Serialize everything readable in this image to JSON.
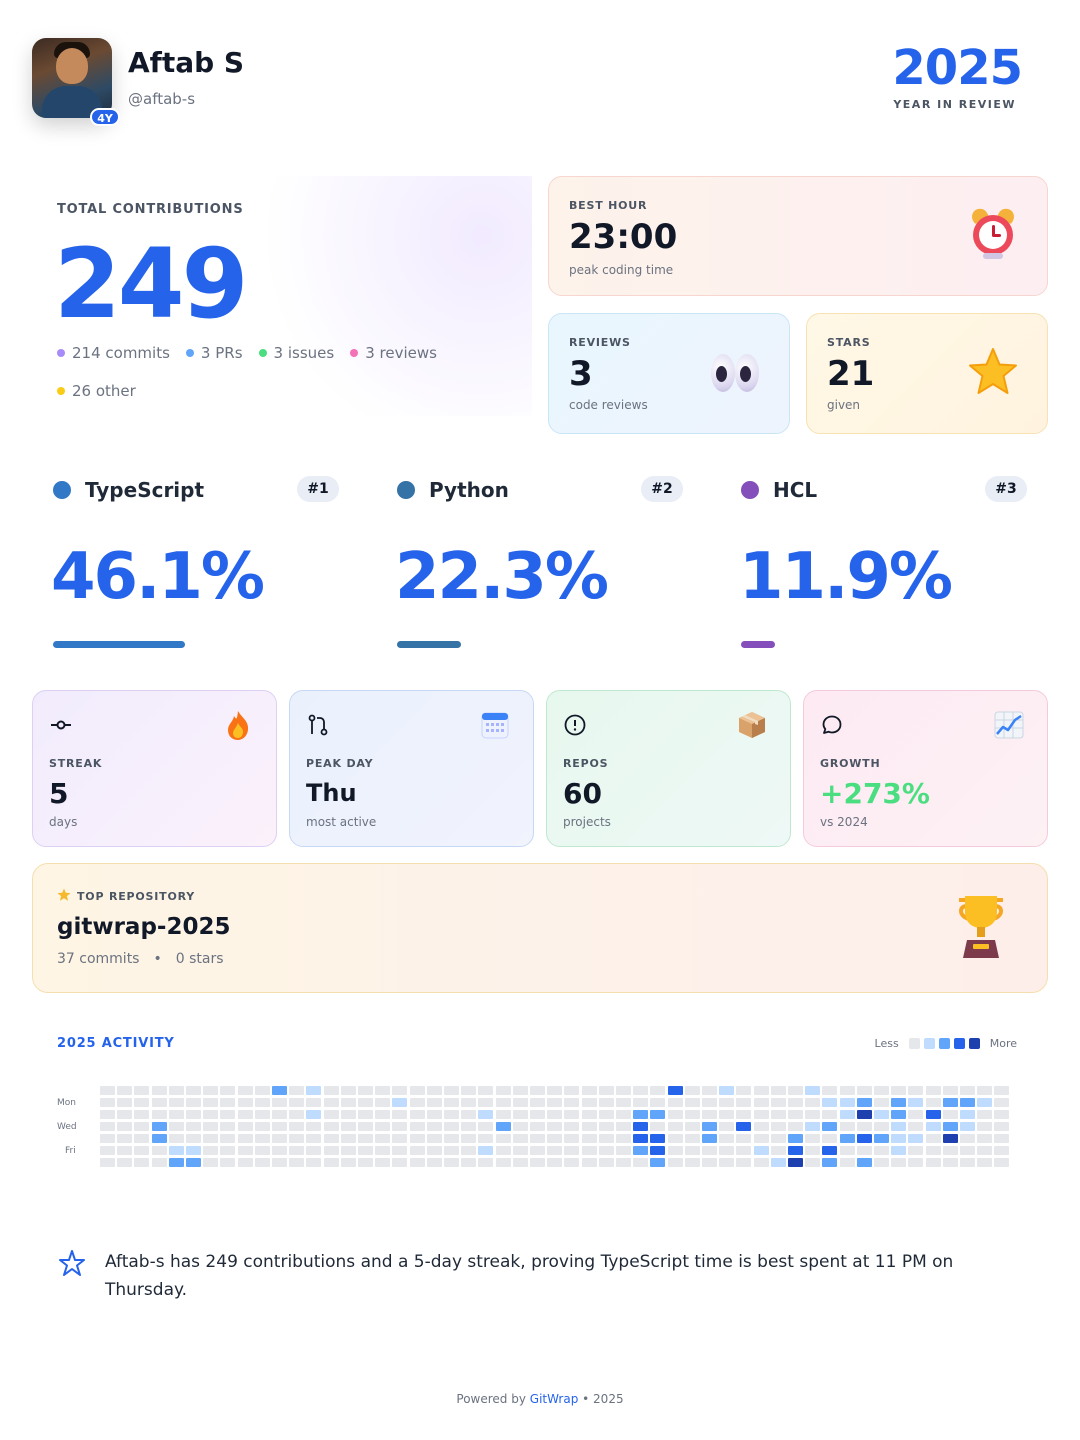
{
  "profile": {
    "name": "Aftab S",
    "handle": "@aftab-s",
    "tenure_badge": "4Y"
  },
  "header": {
    "year": "2025",
    "subtitle": "YEAR IN REVIEW"
  },
  "total": {
    "label": "TOTAL CONTRIBUTIONS",
    "value": "249",
    "breakdown": [
      {
        "text": "214 commits",
        "color": "#a78bfa"
      },
      {
        "text": "3 PRs",
        "color": "#60a5fa"
      },
      {
        "text": "3 issues",
        "color": "#4ade80"
      },
      {
        "text": "3 reviews",
        "color": "#f472b6"
      },
      {
        "text": "26 other",
        "color": "#facc15"
      }
    ]
  },
  "best_hour": {
    "label": "BEST HOUR",
    "value": "23:00",
    "sub": "peak coding time",
    "icon": "alarm-clock-icon"
  },
  "reviews": {
    "label": "REVIEWS",
    "value": "3",
    "sub": "code reviews",
    "icon": "eyes-icon"
  },
  "stars": {
    "label": "STARS",
    "value": "21",
    "sub": "given",
    "icon": "star-icon"
  },
  "languages": [
    {
      "name": "TypeScript",
      "rank": "#1",
      "percent": "46.1%",
      "share": 0.461,
      "color": "#3178c6"
    },
    {
      "name": "Python",
      "rank": "#2",
      "percent": "22.3%",
      "share": 0.223,
      "color": "#3572a5"
    },
    {
      "name": "HCL",
      "rank": "#3",
      "percent": "11.9%",
      "share": 0.119,
      "color": "#844fba"
    }
  ],
  "stat_cards": {
    "streak": {
      "label": "STREAK",
      "value": "5",
      "sub": "days",
      "icon": "commit-icon",
      "emoji": "fire-icon"
    },
    "peak_day": {
      "label": "PEAK DAY",
      "value": "Thu",
      "sub": "most active",
      "icon": "git-pull-request-icon",
      "emoji": "calendar-icon"
    },
    "repos": {
      "label": "REPOS",
      "value": "60",
      "sub": "projects",
      "icon": "alert-circle-icon",
      "emoji": "package-icon"
    },
    "growth": {
      "label": "GROWTH",
      "value": "+273%",
      "sub": "vs 2024",
      "icon": "chat-bubble-icon",
      "emoji": "chart-increasing-icon",
      "value_color": "#4ade80"
    }
  },
  "top_repo": {
    "label": "TOP REPOSITORY",
    "name": "gitwrap-2025",
    "commits": "37 commits",
    "separator": "•",
    "stars": "0 stars"
  },
  "activity": {
    "title": "2025 ACTIVITY",
    "legend_less": "Less",
    "legend_more": "More",
    "day_labels": [
      "Mon",
      "Wed",
      "Fri"
    ],
    "levels": [
      "#e5e7eb",
      "#bfdbfe",
      "#60a5fa",
      "#2563eb",
      "#1e40af"
    ],
    "weeks": 53,
    "active_cells": [
      [
        10,
        0,
        2
      ],
      [
        12,
        0,
        1
      ],
      [
        12,
        2,
        1
      ],
      [
        3,
        3,
        2
      ],
      [
        3,
        4,
        2
      ],
      [
        4,
        5,
        1
      ],
      [
        5,
        5,
        1
      ],
      [
        4,
        6,
        2
      ],
      [
        5,
        6,
        2
      ],
      [
        17,
        1,
        1
      ],
      [
        22,
        2,
        1
      ],
      [
        23,
        3,
        2
      ],
      [
        22,
        5,
        1
      ],
      [
        31,
        2,
        2
      ],
      [
        32,
        2,
        2
      ],
      [
        31,
        3,
        3
      ],
      [
        31,
        4,
        3
      ],
      [
        32,
        4,
        3
      ],
      [
        31,
        5,
        2
      ],
      [
        32,
        5,
        3
      ],
      [
        32,
        6,
        2
      ],
      [
        33,
        0,
        3
      ],
      [
        35,
        3,
        2
      ],
      [
        35,
        4,
        2
      ],
      [
        36,
        0,
        1
      ],
      [
        37,
        3,
        3
      ],
      [
        38,
        5,
        1
      ],
      [
        39,
        6,
        1
      ],
      [
        40,
        4,
        2
      ],
      [
        40,
        5,
        3
      ],
      [
        40,
        6,
        4
      ],
      [
        41,
        0,
        1
      ],
      [
        41,
        3,
        1
      ],
      [
        42,
        3,
        2
      ],
      [
        42,
        5,
        3
      ],
      [
        42,
        6,
        2
      ],
      [
        42,
        1,
        1
      ],
      [
        43,
        1,
        1
      ],
      [
        43,
        2,
        1
      ],
      [
        43,
        4,
        2
      ],
      [
        44,
        1,
        2
      ],
      [
        44,
        2,
        4
      ],
      [
        44,
        4,
        3
      ],
      [
        44,
        6,
        2
      ],
      [
        45,
        2,
        1
      ],
      [
        45,
        4,
        2
      ],
      [
        46,
        1,
        2
      ],
      [
        46,
        2,
        2
      ],
      [
        46,
        3,
        1
      ],
      [
        46,
        4,
        1
      ],
      [
        46,
        5,
        1
      ],
      [
        47,
        1,
        1
      ],
      [
        47,
        4,
        1
      ],
      [
        48,
        2,
        3
      ],
      [
        48,
        3,
        1
      ],
      [
        49,
        1,
        2
      ],
      [
        49,
        3,
        2
      ],
      [
        49,
        4,
        4
      ],
      [
        50,
        1,
        2
      ],
      [
        50,
        2,
        1
      ],
      [
        50,
        3,
        1
      ],
      [
        51,
        1,
        1
      ]
    ]
  },
  "summary": {
    "text": "Aftab-s has 249 contributions and a 5-day streak, proving TypeScript time is best spent at 11 PM on Thursday."
  },
  "footer": {
    "prefix": "Powered by ",
    "brand": "GitWrap",
    "suffix": " • 2025"
  }
}
